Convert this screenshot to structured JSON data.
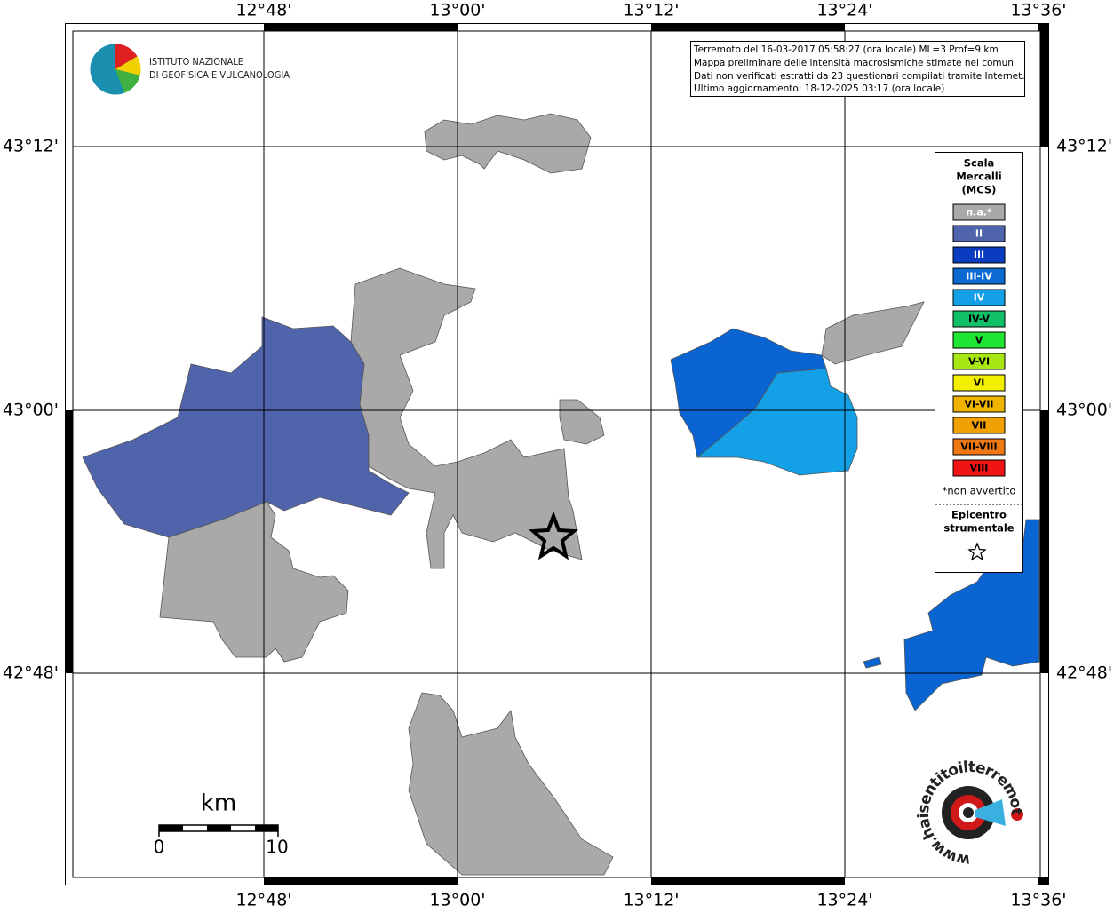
{
  "header": {
    "institute": [
      "ISTITUTO NAZIONALE",
      "DI GEOFISICA E VULCANOLOGIA"
    ],
    "info": [
      "Terremoto del 16-03-2017 05:58:27 (ora locale) ML=3 Prof=9 km",
      "Mappa preliminare delle intensità macrosismiche stimate nei comuni",
      "Dati non verificati estratti da 23 questionari compilati tramite Internet.",
      "Ultimo aggiornamento: 18-12-2025 03:17 (ora locale)"
    ]
  },
  "coordinates": {
    "longitude": [
      "12°48'",
      "13°00'",
      "13°12'",
      "13°24'",
      "13°36'"
    ],
    "latitude": [
      "43°12'",
      "43°00'",
      "42°48'"
    ]
  },
  "legend": {
    "title": [
      "Scala",
      "Mercalli",
      "(MCS)"
    ],
    "items": [
      {
        "label": "n.a.*",
        "color": "#a9a9a9",
        "text_color": "#ffffff"
      },
      {
        "label": "II",
        "color": "#5064ac",
        "text_color": "#ffffff"
      },
      {
        "label": "III",
        "color": "#0a3cc0",
        "text_color": "#ffffff"
      },
      {
        "label": "III-IV",
        "color": "#0a6ad2",
        "text_color": "#ffffff"
      },
      {
        "label": "IV",
        "color": "#14a0e6",
        "text_color": "#ffffff"
      },
      {
        "label": "IV-V",
        "color": "#12c06a",
        "text_color": "#000000"
      },
      {
        "label": "V",
        "color": "#1ee632",
        "text_color": "#000000"
      },
      {
        "label": "V-VI",
        "color": "#a8e614",
        "text_color": "#000000"
      },
      {
        "label": "VI",
        "color": "#f2f000",
        "text_color": "#000000"
      },
      {
        "label": "VI-VII",
        "color": "#f0b400",
        "text_color": "#000000"
      },
      {
        "label": "VII",
        "color": "#f0a000",
        "text_color": "#000000"
      },
      {
        "label": "VII-VIII",
        "color": "#f07814",
        "text_color": "#000000"
      },
      {
        "label": "VIII",
        "color": "#f01414",
        "text_color": "#000000"
      }
    ],
    "note": "*non avvertito",
    "epicenter": [
      "Epicentro",
      "strumentale"
    ]
  },
  "scale": {
    "unit": "km",
    "start": "0",
    "end": "10"
  },
  "footer": {
    "website": "www.haisentitoilterremoto.it"
  }
}
